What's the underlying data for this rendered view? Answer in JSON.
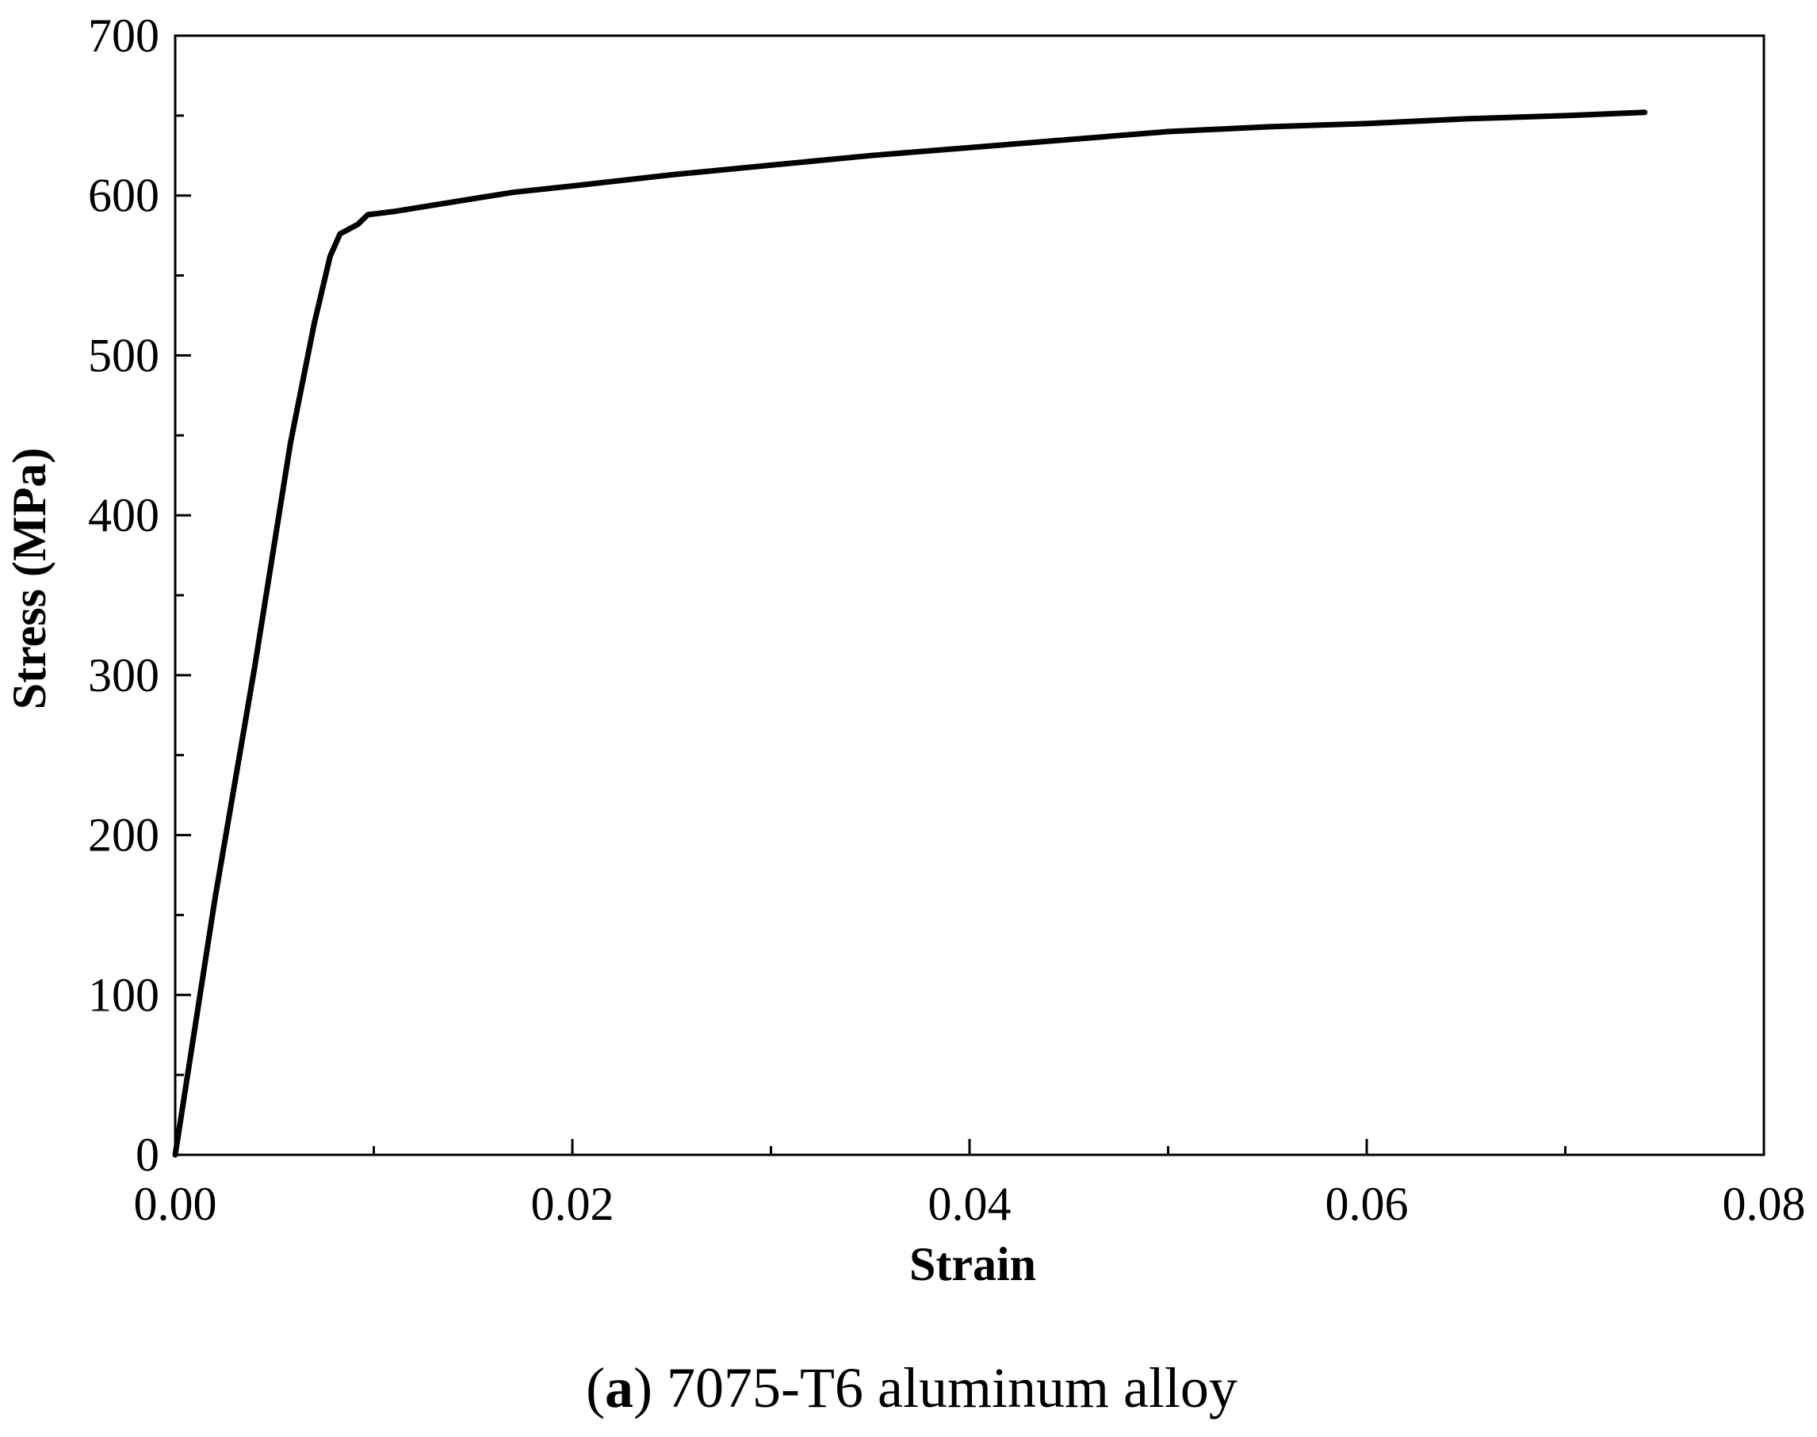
{
  "chart_data": {
    "type": "line",
    "title": "",
    "xlabel": "Strain",
    "ylabel": "Stress (MPa)",
    "xlim": [
      0,
      0.08
    ],
    "ylim": [
      0,
      700
    ],
    "x_ticks": [
      "0.00",
      "0.02",
      "0.04",
      "0.06",
      "0.08"
    ],
    "y_ticks": [
      "0",
      "100",
      "200",
      "300",
      "400",
      "500",
      "600",
      "700"
    ],
    "x_tick_values": [
      0,
      0.02,
      0.04,
      0.06,
      0.08
    ],
    "y_tick_values": [
      0,
      100,
      200,
      300,
      400,
      500,
      600,
      700
    ],
    "x_minor_tick_values": [
      0.01,
      0.03,
      0.05,
      0.07
    ],
    "y_minor_tick_values": [
      50,
      150,
      250,
      350,
      450,
      550,
      650
    ],
    "grid": false,
    "legend": "none",
    "line_color": "#000000",
    "series": [
      {
        "x": [
          0,
          0.0005,
          0.002,
          0.004,
          0.0058,
          0.007,
          0.0078,
          0.0083,
          0.0092,
          0.0097,
          0.011,
          0.013,
          0.017,
          0.02,
          0.025,
          0.03,
          0.035,
          0.04,
          0.045,
          0.05,
          0.055,
          0.06,
          0.065,
          0.07,
          0.074
        ],
        "y": [
          0,
          40,
          160,
          305,
          445,
          520,
          562,
          576,
          582,
          588,
          590,
          594,
          602,
          606,
          613,
          619,
          625,
          630,
          635,
          640,
          643,
          645,
          648,
          650,
          652
        ]
      }
    ]
  },
  "caption": {
    "letter": "a",
    "open_paren": "(",
    "close_paren": ")",
    "text": " 7075-T6 aluminum alloy"
  }
}
